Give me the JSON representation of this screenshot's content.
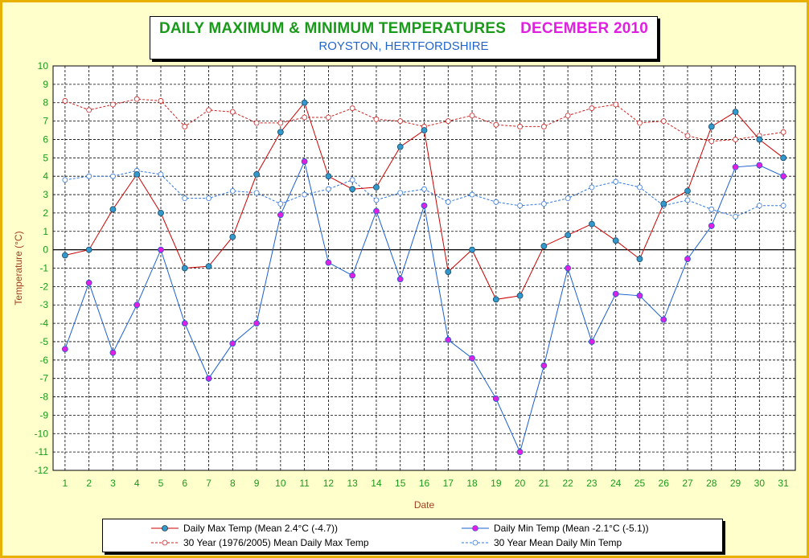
{
  "title": {
    "main": "DAILY MAXIMUM &  MINIMUM  TEMPERATURES",
    "month": "DECEMBER 2010",
    "subtitle": "ROYSTON, HERTFORDSHIRE"
  },
  "colors": {
    "background": "#ffffcc",
    "frame": "#e8b000",
    "max_line": "#cc0000",
    "min_line": "#1a5fd0",
    "marker_max": "#3399cc",
    "marker_min": "#e020e0",
    "avg_max": "#cc2222",
    "avg_min": "#3377dd"
  },
  "chart_data": {
    "type": "line",
    "xlabel": "Date",
    "ylabel": "Temperature (°C)",
    "ylim": [
      -12,
      10
    ],
    "xlim": [
      1,
      31
    ],
    "grid": true,
    "legend_placement": "bottom",
    "x": [
      1,
      2,
      3,
      4,
      5,
      6,
      7,
      8,
      9,
      10,
      11,
      12,
      13,
      14,
      15,
      16,
      17,
      18,
      19,
      20,
      21,
      22,
      23,
      24,
      25,
      26,
      27,
      28,
      29,
      30,
      31
    ],
    "series": [
      {
        "name": "Daily Max Temp (Mean 2.4°C (-4.7))",
        "style": "solid",
        "values": [
          -0.3,
          0.0,
          2.2,
          4.1,
          2.0,
          -1.0,
          -0.9,
          0.7,
          4.1,
          6.4,
          8.0,
          4.0,
          3.3,
          3.4,
          5.6,
          6.5,
          -1.2,
          0.0,
          -2.7,
          -2.5,
          0.2,
          0.8,
          1.4,
          0.5,
          -0.5,
          2.5,
          3.2,
          6.7,
          7.5,
          6.0,
          5.0
        ]
      },
      {
        "name": "Daily Min Temp (Mean -2.1°C (-5.1))",
        "style": "solid",
        "values": [
          -5.4,
          -1.8,
          -5.6,
          -3.0,
          0.0,
          -4.0,
          -7.0,
          -5.1,
          -4.0,
          1.9,
          4.8,
          -0.7,
          -1.4,
          2.1,
          -1.6,
          2.4,
          -4.9,
          -5.9,
          -8.1,
          -11.0,
          -6.3,
          -1.0,
          -5.0,
          -2.4,
          -2.5,
          -3.8,
          -0.5,
          1.3,
          4.5,
          4.6,
          4.0
        ]
      },
      {
        "name": "30 Year (1976/2005) Mean Daily Max Temp",
        "style": "dashed",
        "values": [
          8.1,
          7.6,
          7.9,
          8.2,
          8.1,
          6.7,
          7.6,
          7.5,
          6.9,
          6.9,
          7.2,
          7.2,
          7.7,
          7.1,
          7.0,
          6.7,
          7.0,
          7.3,
          6.8,
          6.7,
          6.7,
          7.3,
          7.7,
          7.9,
          6.9,
          7.0,
          6.2,
          5.9,
          6.0,
          6.2,
          6.4
        ]
      },
      {
        "name": "30 Year Mean Daily Min Temp",
        "style": "dashed",
        "values": [
          3.8,
          4.0,
          4.0,
          4.3,
          4.1,
          2.8,
          2.8,
          3.2,
          3.1,
          2.5,
          3.0,
          3.3,
          3.8,
          2.7,
          3.1,
          3.3,
          2.6,
          3.0,
          2.6,
          2.4,
          2.5,
          2.8,
          3.4,
          3.7,
          3.4,
          2.4,
          2.7,
          2.2,
          1.8,
          2.4,
          2.4
        ]
      }
    ]
  }
}
